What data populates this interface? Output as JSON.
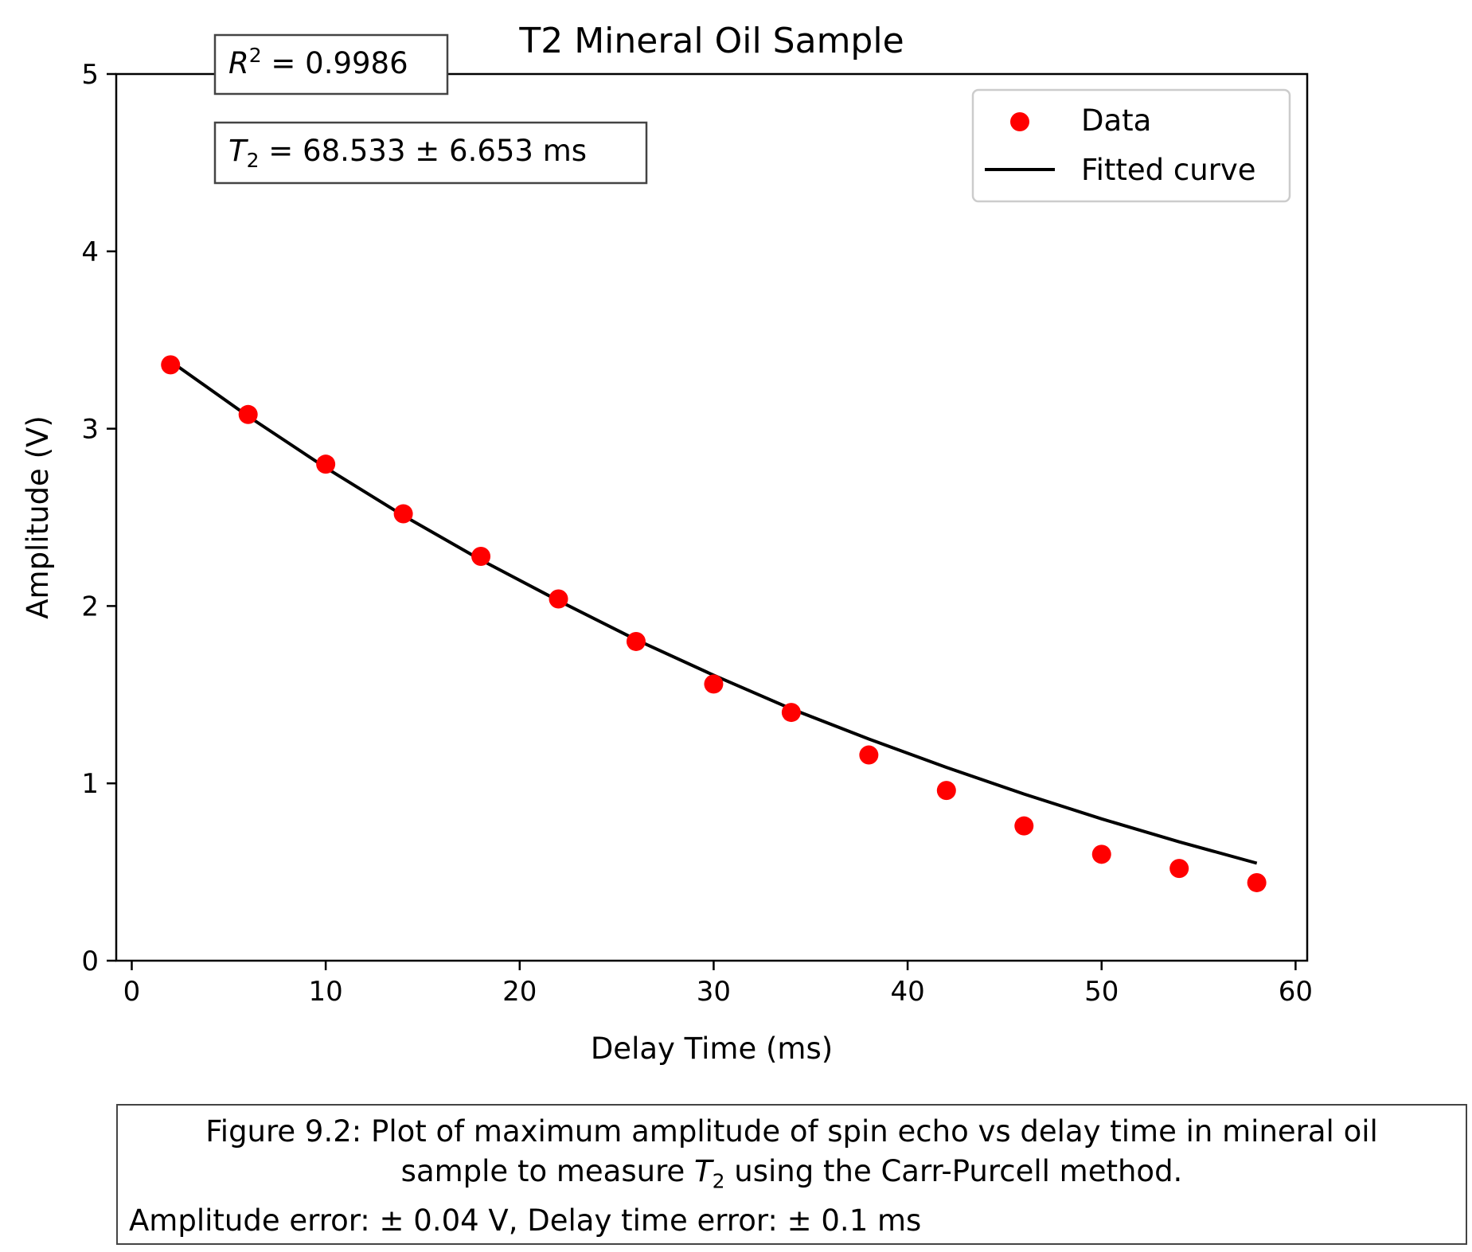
{
  "chart_data": {
    "type": "scatter",
    "title": "T2 Mineral Oil Sample",
    "xlabel": "Delay Time (ms)",
    "ylabel": "Amplitude (V)",
    "xlim": [
      -0.8,
      60.6
    ],
    "ylim": [
      0,
      5
    ],
    "x_ticks": [
      "0",
      "10",
      "20",
      "30",
      "40",
      "50",
      "60"
    ],
    "y_ticks": [
      "0",
      "1",
      "2",
      "3",
      "4",
      "5"
    ],
    "grid": false,
    "legend_position": "top-right",
    "series": [
      {
        "name": "Data",
        "kind": "scatter",
        "color": "#ff0000",
        "x": [
          2,
          6,
          10,
          14,
          18,
          22,
          26,
          30,
          34,
          38,
          42,
          46,
          50,
          54,
          58
        ],
        "y": [
          3.36,
          3.08,
          2.8,
          2.52,
          2.28,
          2.04,
          1.8,
          1.56,
          1.4,
          1.16,
          0.96,
          0.76,
          0.6,
          0.52,
          0.44
        ]
      },
      {
        "name": "Fitted curve",
        "kind": "line",
        "color": "#000000",
        "x": [
          2,
          6,
          10,
          14,
          18,
          22,
          26,
          30,
          34,
          38,
          42,
          46,
          50,
          54,
          58
        ],
        "y": [
          3.38,
          3.07,
          2.78,
          2.51,
          2.26,
          2.03,
          1.81,
          1.61,
          1.42,
          1.25,
          1.09,
          0.94,
          0.8,
          0.67,
          0.55
        ]
      }
    ],
    "annotations": {
      "r2_label": "R",
      "r2_sup": "2",
      "r2_value": " = 0.9986",
      "t2_label": "T",
      "t2_sub": "2",
      "t2_value": " = 68.533 ± 6.653 ms"
    }
  },
  "caption": {
    "line1": "Figure 9.2: Plot of maximum amplitude of spin echo vs delay time in mineral oil",
    "line2_pre": "sample to measure ",
    "line2_T": "T",
    "line2_sub": "2",
    "line2_post": " using the Carr-Purcell method.",
    "line3": "Amplitude error: ± 0.04 V, Delay time error: ± 0.1 ms"
  }
}
